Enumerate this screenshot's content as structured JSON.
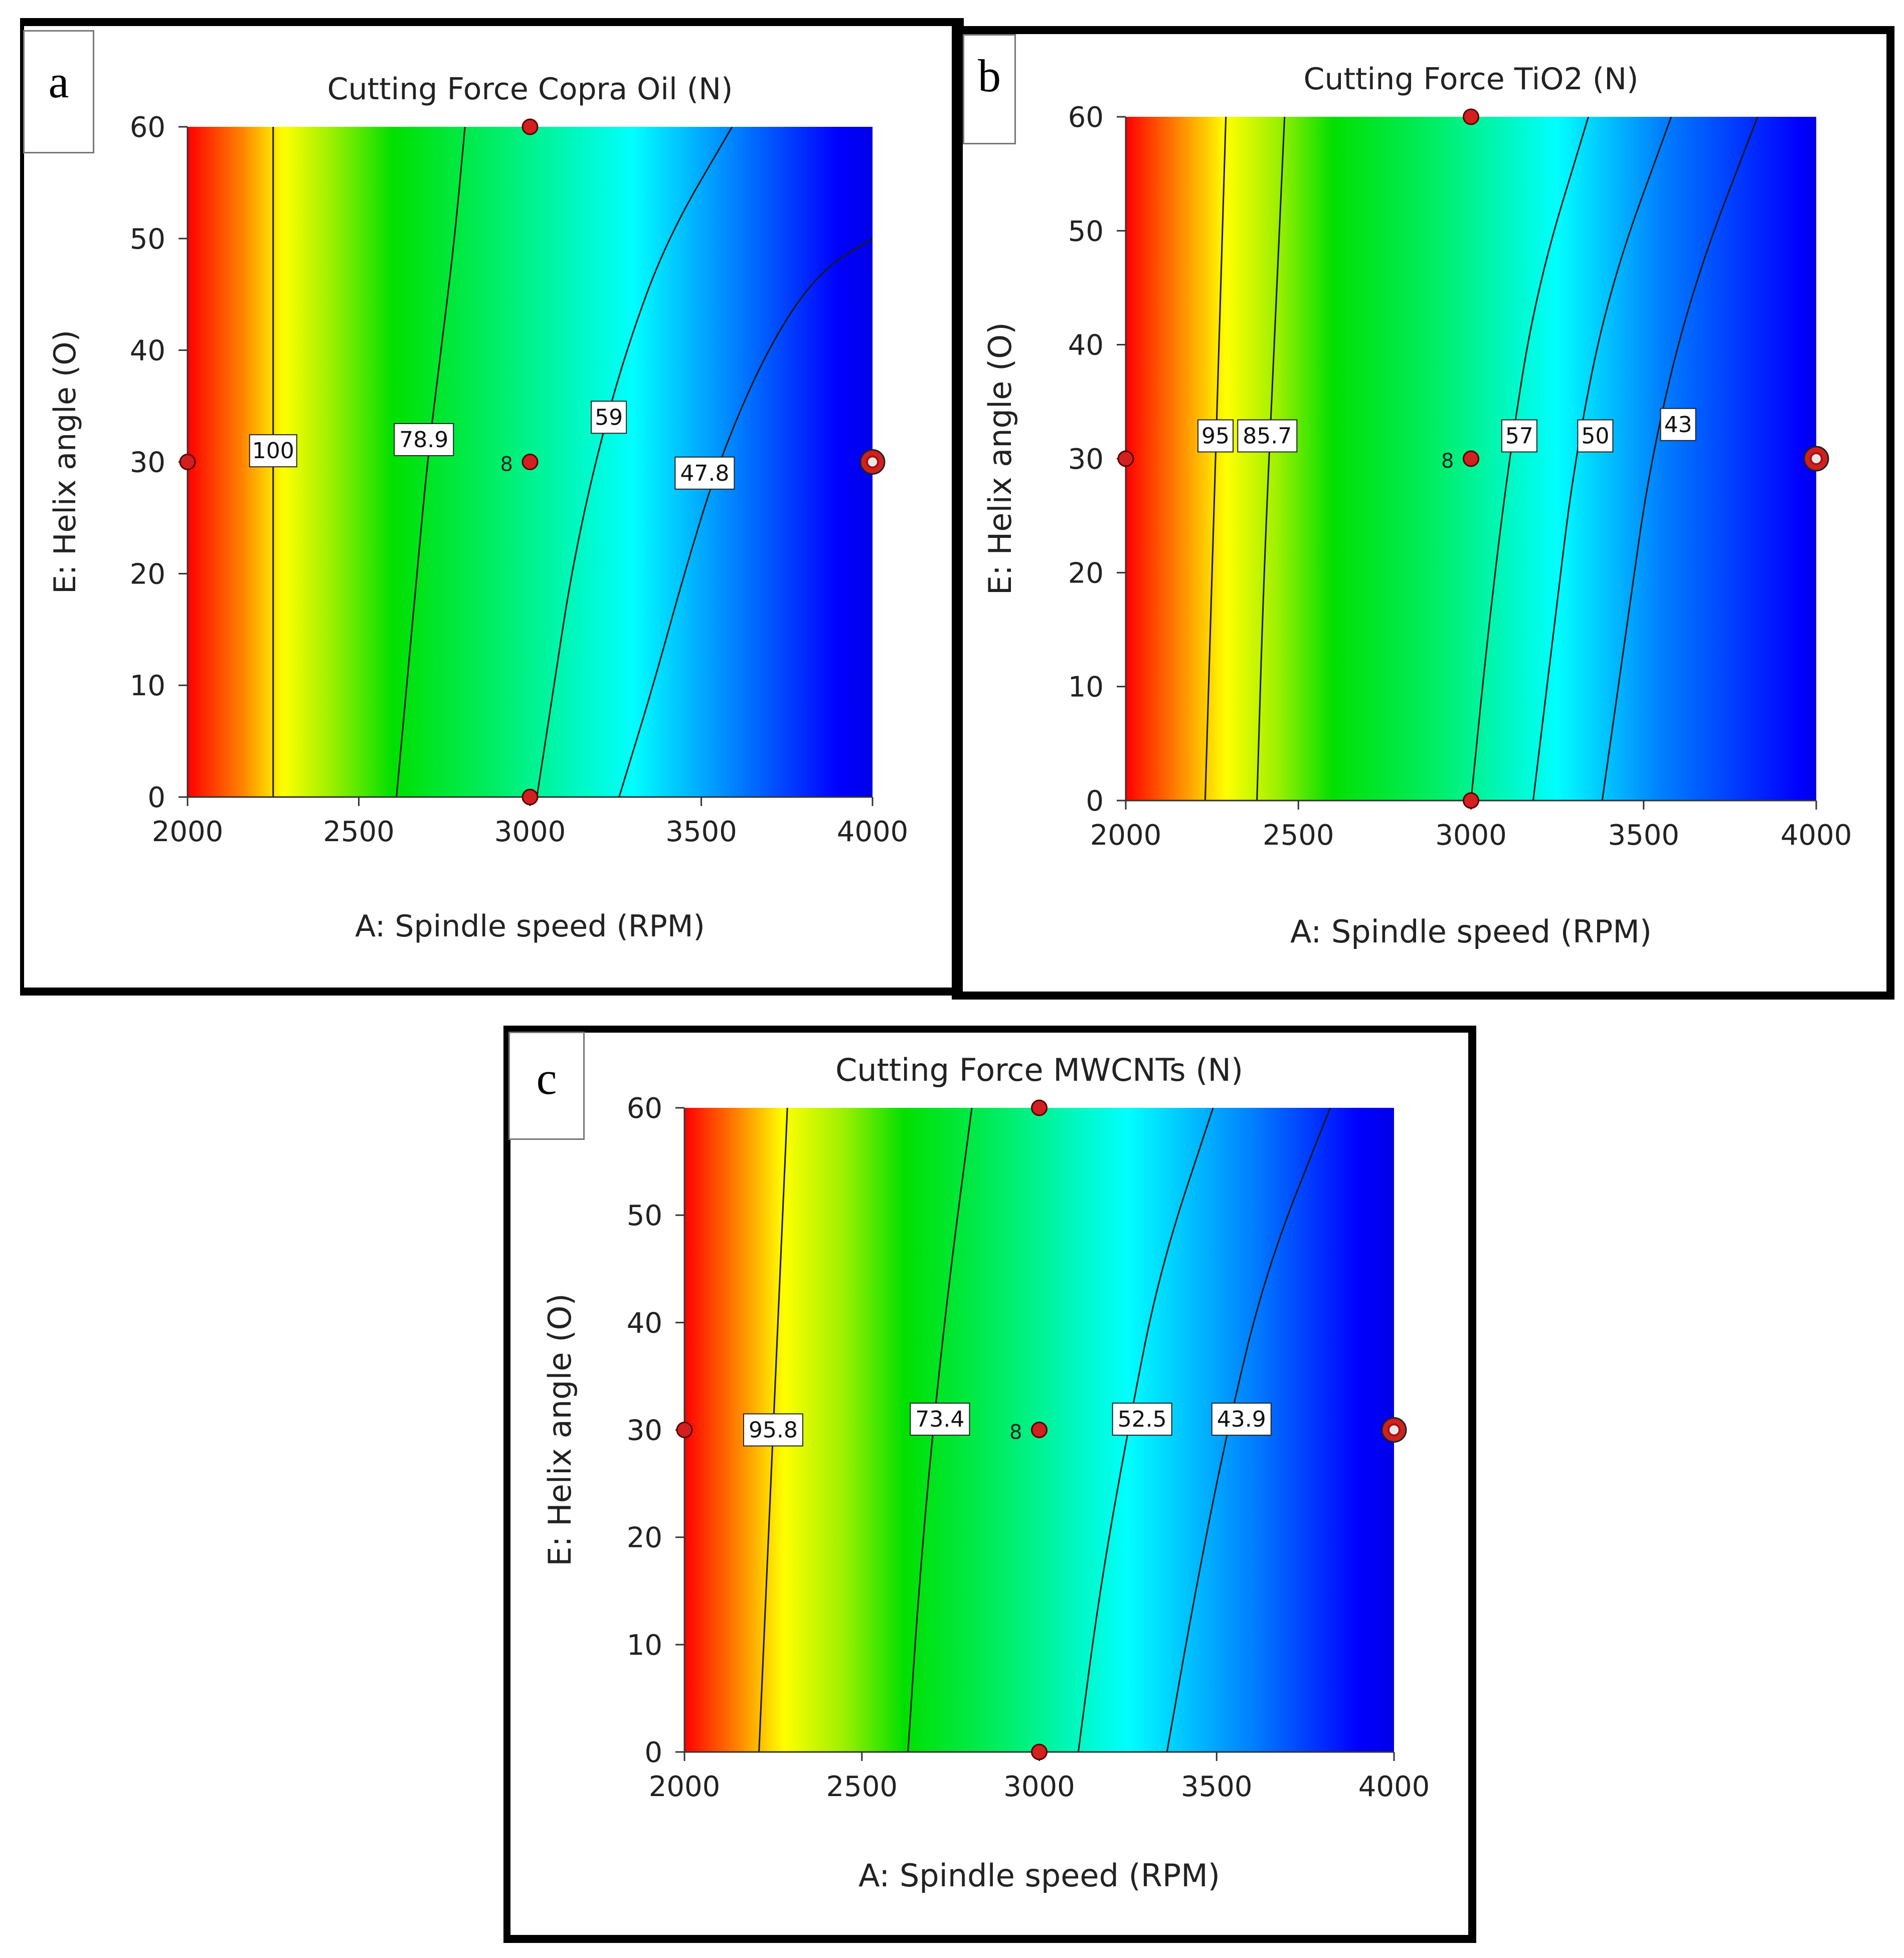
{
  "chart_data": [
    {
      "panel": "a",
      "type": "heatmap",
      "title": "Cutting Force Copra Oil  (N)",
      "xlabel": "A: Spindle speed (RPM)",
      "ylabel": "E: Helix angle (O)",
      "xlim": [
        2000,
        4000
      ],
      "ylim": [
        0,
        60
      ],
      "x_ticks": [
        "2000",
        "2500",
        "3000",
        "3500",
        "4000"
      ],
      "y_ticks": [
        "0",
        "10",
        "20",
        "30",
        "40",
        "50",
        "60"
      ],
      "color_stops": [
        {
          "x": 2000,
          "color": "#ff0000"
        },
        {
          "x": 2150,
          "color": "#ff7b00"
        },
        {
          "x": 2280,
          "color": "#ffff00"
        },
        {
          "x": 2420,
          "color": "#9cf000"
        },
        {
          "x": 2600,
          "color": "#00e000"
        },
        {
          "x": 2900,
          "color": "#00ee66"
        },
        {
          "x": 3300,
          "color": "#00ffff"
        },
        {
          "x": 3600,
          "color": "#0080ff"
        },
        {
          "x": 3900,
          "color": "#0000ff"
        },
        {
          "x": 4000,
          "color": "#0000e8"
        }
      ],
      "contours": [
        {
          "label": "100",
          "points": [
            [
              2250,
              0
            ],
            [
              2250,
              60
            ]
          ],
          "label_at": [
            2250,
            31
          ]
        },
        {
          "label": "78.9",
          "points": [
            [
              2610,
              0
            ],
            [
              2640,
              10
            ],
            [
              2670,
              20
            ],
            [
              2700,
              30
            ],
            [
              2740,
              40
            ],
            [
              2780,
              50
            ],
            [
              2810,
              60
            ]
          ],
          "label_at": [
            2690,
            32
          ]
        },
        {
          "label": "59",
          "points": [
            [
              3020,
              0
            ],
            [
              3070,
              10
            ],
            [
              3120,
              20
            ],
            [
              3190,
              30
            ],
            [
              3280,
              40
            ],
            [
              3400,
              50
            ],
            [
              3590,
              60
            ]
          ],
          "label_at": [
            3230,
            34
          ]
        },
        {
          "label": "47.8",
          "points": [
            [
              3260,
              0
            ],
            [
              3360,
              10
            ],
            [
              3450,
              20
            ],
            [
              3550,
              30
            ],
            [
              3690,
              40
            ],
            [
              3840,
              47
            ],
            [
              4000,
              50
            ]
          ],
          "label_at": [
            3510,
            29
          ]
        }
      ],
      "design_points": [
        {
          "x": 2000,
          "y": 30,
          "label": ""
        },
        {
          "x": 3000,
          "y": 60,
          "label": ""
        },
        {
          "x": 3000,
          "y": 30,
          "label": "8"
        },
        {
          "x": 3000,
          "y": 0,
          "label": ""
        },
        {
          "x": 4000,
          "y": 30,
          "label": "",
          "ringed": true
        }
      ]
    },
    {
      "panel": "b",
      "type": "heatmap",
      "title": "Cutting Force TiO2  (N)",
      "xlabel": "A: Spindle speed (RPM)",
      "ylabel": "E: Helix angle (O)",
      "xlim": [
        2000,
        4000
      ],
      "ylim": [
        0,
        60
      ],
      "x_ticks": [
        "2000",
        "2500",
        "3000",
        "3500",
        "4000"
      ],
      "y_ticks": [
        "0",
        "10",
        "20",
        "30",
        "40",
        "50",
        "60"
      ],
      "color_stops": [
        {
          "x": 2000,
          "color": "#ff0000"
        },
        {
          "x": 2140,
          "color": "#ff7b00"
        },
        {
          "x": 2290,
          "color": "#ffff00"
        },
        {
          "x": 2440,
          "color": "#9cf000"
        },
        {
          "x": 2600,
          "color": "#00e000"
        },
        {
          "x": 2900,
          "color": "#00ee66"
        },
        {
          "x": 3250,
          "color": "#00ffff"
        },
        {
          "x": 3550,
          "color": "#0080ff"
        },
        {
          "x": 3950,
          "color": "#0000ff"
        },
        {
          "x": 4000,
          "color": "#0000e8"
        }
      ],
      "contours": [
        {
          "label": "95",
          "points": [
            [
              2230,
              0
            ],
            [
              2250,
              20
            ],
            [
              2270,
              40
            ],
            [
              2290,
              60
            ]
          ],
          "label_at": [
            2260,
            32
          ]
        },
        {
          "label": "85.7",
          "points": [
            [
              2380,
              0
            ],
            [
              2400,
              20
            ],
            [
              2430,
              40
            ],
            [
              2460,
              60
            ]
          ],
          "label_at": [
            2410,
            32
          ]
        },
        {
          "label": "57",
          "points": [
            [
              3000,
              0
            ],
            [
              3050,
              15
            ],
            [
              3110,
              30
            ],
            [
              3190,
              45
            ],
            [
              3340,
              60
            ]
          ],
          "label_at": [
            3140,
            32
          ]
        },
        {
          "label": "50",
          "points": [
            [
              3180,
              0
            ],
            [
              3240,
              15
            ],
            [
              3300,
              30
            ],
            [
              3400,
              45
            ],
            [
              3580,
              60
            ]
          ],
          "label_at": [
            3360,
            32
          ]
        },
        {
          "label": "43",
          "points": [
            [
              3380,
              0
            ],
            [
              3450,
              15
            ],
            [
              3520,
              30
            ],
            [
              3640,
              45
            ],
            [
              3830,
              60
            ]
          ],
          "label_at": [
            3600,
            33
          ]
        }
      ],
      "design_points": [
        {
          "x": 2000,
          "y": 30,
          "label": ""
        },
        {
          "x": 3000,
          "y": 60,
          "label": ""
        },
        {
          "x": 3000,
          "y": 30,
          "label": "8"
        },
        {
          "x": 3000,
          "y": 0,
          "label": ""
        },
        {
          "x": 4000,
          "y": 30,
          "label": "",
          "ringed": true
        }
      ]
    },
    {
      "panel": "c",
      "type": "heatmap",
      "title": "Cutting Force MWCNTs  (N)",
      "xlabel": "A: Spindle speed (RPM)",
      "ylabel": "E: Helix angle (O)",
      "xlim": [
        2000,
        4000
      ],
      "ylim": [
        0,
        60
      ],
      "x_ticks": [
        "2000",
        "2500",
        "3000",
        "3500",
        "4000"
      ],
      "y_ticks": [
        "0",
        "10",
        "20",
        "30",
        "40",
        "50",
        "60"
      ],
      "color_stops": [
        {
          "x": 2000,
          "color": "#ff0000"
        },
        {
          "x": 2140,
          "color": "#ff7b00"
        },
        {
          "x": 2280,
          "color": "#ffff00"
        },
        {
          "x": 2450,
          "color": "#9cf000"
        },
        {
          "x": 2620,
          "color": "#00e000"
        },
        {
          "x": 2900,
          "color": "#00ee66"
        },
        {
          "x": 3250,
          "color": "#00ffff"
        },
        {
          "x": 3600,
          "color": "#0080ff"
        },
        {
          "x": 3900,
          "color": "#0000ff"
        },
        {
          "x": 4000,
          "color": "#0000e8"
        }
      ],
      "contours": [
        {
          "label": "95.8",
          "points": [
            [
              2210,
              0
            ],
            [
              2230,
              15
            ],
            [
              2250,
              30
            ],
            [
              2270,
              45
            ],
            [
              2290,
              60
            ]
          ],
          "label_at": [
            2250,
            30
          ]
        },
        {
          "label": "73.4",
          "points": [
            [
              2630,
              0
            ],
            [
              2660,
              15
            ],
            [
              2700,
              30
            ],
            [
              2750,
              45
            ],
            [
              2810,
              60
            ]
          ],
          "label_at": [
            2720,
            31
          ]
        },
        {
          "label": "52.5",
          "points": [
            [
              3110,
              0
            ],
            [
              3170,
              15
            ],
            [
              3250,
              30
            ],
            [
              3340,
              45
            ],
            [
              3490,
              60
            ]
          ],
          "label_at": [
            3290,
            31
          ]
        },
        {
          "label": "43.9",
          "points": [
            [
              3360,
              0
            ],
            [
              3440,
              15
            ],
            [
              3530,
              30
            ],
            [
              3640,
              45
            ],
            [
              3820,
              60
            ]
          ],
          "label_at": [
            3570,
            31
          ]
        }
      ],
      "design_points": [
        {
          "x": 2000,
          "y": 30,
          "label": ""
        },
        {
          "x": 3000,
          "y": 60,
          "label": ""
        },
        {
          "x": 3000,
          "y": 30,
          "label": "8"
        },
        {
          "x": 3000,
          "y": 0,
          "label": ""
        },
        {
          "x": 4000,
          "y": 30,
          "label": "",
          "ringed": true
        }
      ]
    }
  ]
}
